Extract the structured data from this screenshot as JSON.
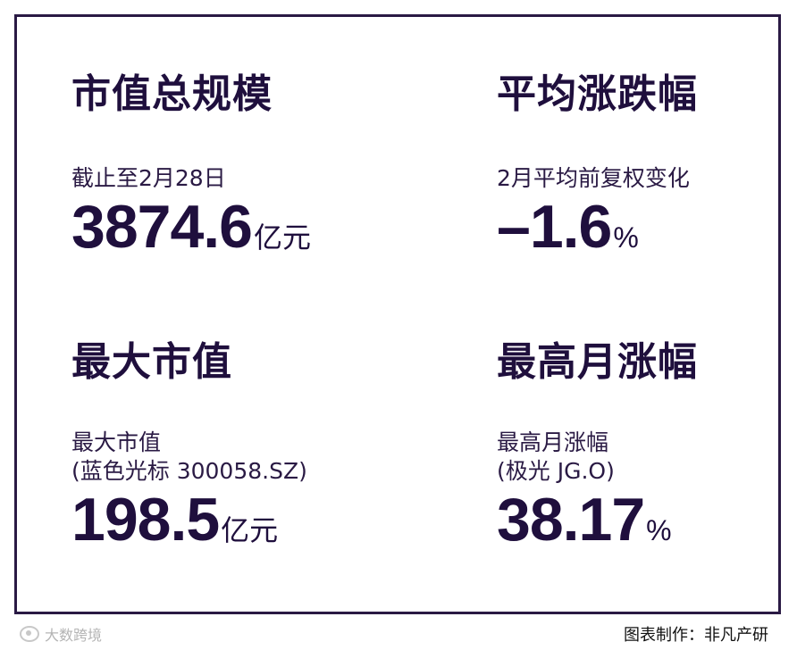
{
  "cards": {
    "market_cap": {
      "title": "市值总规模",
      "caption": "截止至2月28日",
      "value": "3874.6",
      "unit": "亿元"
    },
    "avg_change": {
      "title": "平均涨跌幅",
      "caption": "2月平均前复权变化",
      "value": "–1.6",
      "unit": "%"
    },
    "largest": {
      "title": "最大市值",
      "caption_line1": "最大市值",
      "caption_line2": "(蓝色光标 300058.SZ)",
      "value": "198.5",
      "unit": "亿元"
    },
    "top_gain": {
      "title": "最高月涨幅",
      "caption_line1": "最高月涨幅",
      "caption_line2": "(极光 JG.O)",
      "value": "38.17",
      "unit": "%"
    }
  },
  "watermark": {
    "text": "大数跨境",
    "icon": "brand-logo-icon"
  },
  "footer": {
    "credit": "图表制作：非凡产研"
  },
  "colors": {
    "text": "#1f0f3d",
    "border": "#2a1a44",
    "background": "#ffffff",
    "watermark": "#b4b4b4"
  }
}
